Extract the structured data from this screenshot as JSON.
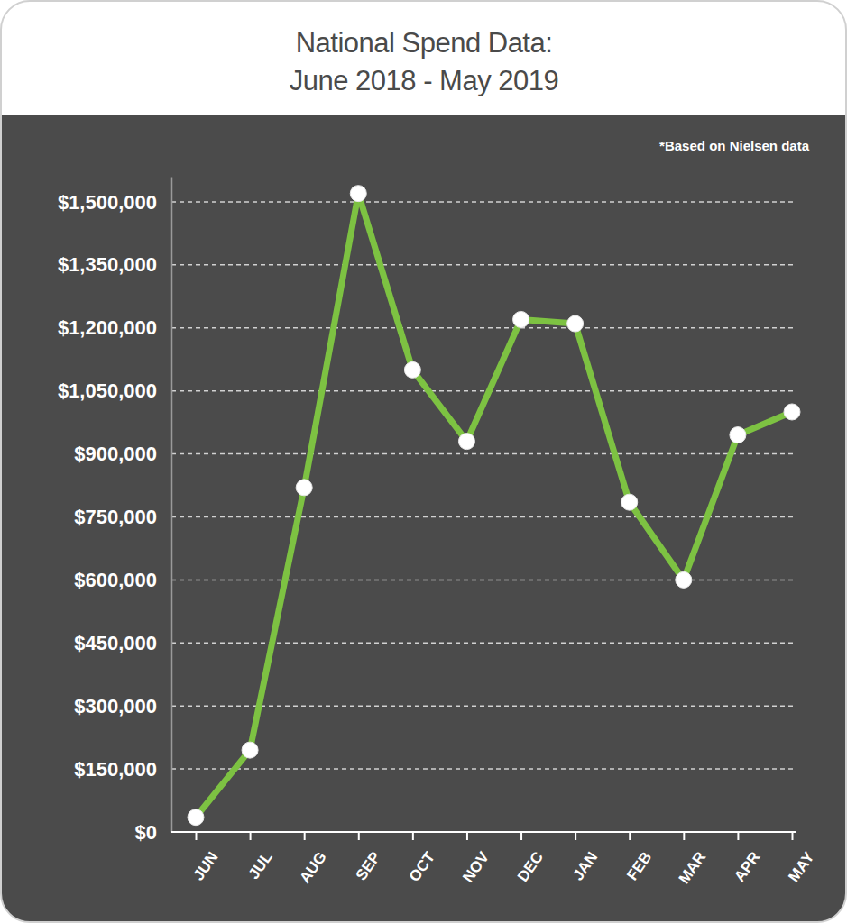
{
  "chart_data": {
    "type": "line",
    "title": "National Spend Data:\nJune 2018 - May 2019",
    "annotation": "*Based on Nielsen data",
    "categories": [
      "JUN",
      "JUL",
      "AUG",
      "SEP",
      "OCT",
      "NOV",
      "DEC",
      "JAN",
      "FEB",
      "MAR",
      "APR",
      "MAY"
    ],
    "values": [
      35000,
      195000,
      820000,
      1520000,
      1100000,
      930000,
      1220000,
      1210000,
      785000,
      600000,
      945000,
      1000000
    ],
    "color": "#7dc242",
    "marker": "circle",
    "ylim": [
      0,
      1560000
    ],
    "yticks": [
      {
        "value": 0,
        "label": "$0"
      },
      {
        "value": 150000,
        "label": "$150,000"
      },
      {
        "value": 300000,
        "label": "$300,000"
      },
      {
        "value": 450000,
        "label": "$450,000"
      },
      {
        "value": 600000,
        "label": "$600,000"
      },
      {
        "value": 750000,
        "label": "$750,000"
      },
      {
        "value": 900000,
        "label": "$900,000"
      },
      {
        "value": 1050000,
        "label": "$1,050,000"
      },
      {
        "value": 1200000,
        "label": "$1,200,000"
      },
      {
        "value": 1350000,
        "label": "$1,350,000"
      },
      {
        "value": 1500000,
        "label": "$1,500,000"
      }
    ],
    "grid": true
  }
}
